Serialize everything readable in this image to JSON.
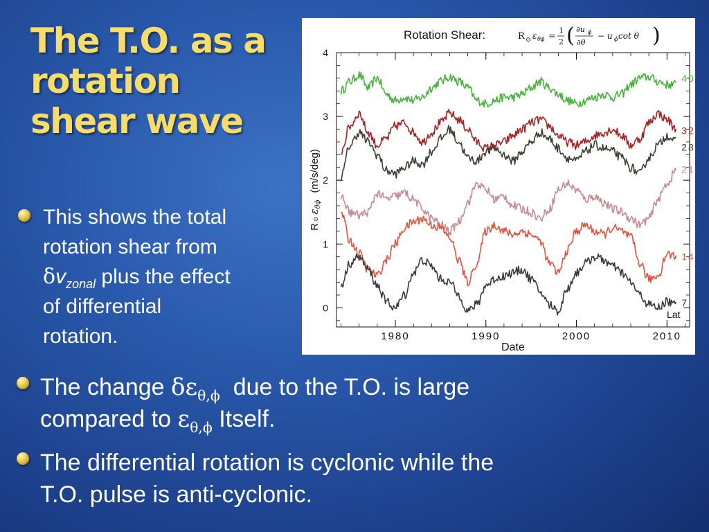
{
  "slide": {
    "title_lines": [
      "The T.O. as a",
      "rotation",
      "shear wave"
    ],
    "bullet1": {
      "lines": [
        "This shows the total",
        "rotation shear from"
      ],
      "delta": "δ",
      "v": "v",
      "zonal_sub": "zonal",
      "line3_rest": " plus the effect",
      "line4": "of differential",
      "line5": "rotation."
    },
    "bullet2": {
      "pre": "The change ",
      "delta_eps": "δε",
      "sub": "θ,ϕ",
      "post": "  due to the T.O. is large",
      "line2_pre": "compared to ",
      "eps": "ε",
      "line2_post": " Itself."
    },
    "bullet3": {
      "lines": [
        "The differential rotation is cyclonic while the",
        "T.O. pulse is anti-cyclonic."
      ]
    },
    "colors": {
      "title": "#f6dd6a",
      "background": "#2a5aad",
      "lat40": "#45b33a",
      "lat32": "#a82020",
      "lat28": "#3d3d32",
      "lat21": "#c8888f",
      "lat14": "#e8503a",
      "lat7": "#3a3a3a"
    }
  },
  "chart_data": {
    "type": "line",
    "title": "Rotation Shear:",
    "formula_lhs": "R",
    "formula_eps": "ε",
    "formula_eps_sub": "θϕ",
    "formula_eq": "=",
    "formula_frac_num": "1",
    "formula_frac_den": "2",
    "formula_num": "∂u",
    "formula_num_sub": "ϕ",
    "formula_den": "∂θ",
    "formula_tail": "− u",
    "formula_tail_sub": "ϕ",
    "formula_tail2": " cot θ",
    "xlabel": "Date",
    "ylabel": "(m/s/deg)",
    "ylabel_prefix": "R",
    "ylabel_eps": "ε",
    "ylabel_eps_sub": "θϕ",
    "x_ticks": [
      1980,
      1990,
      2000,
      2010
    ],
    "y_ticks": [
      0,
      1,
      2,
      3,
      4
    ],
    "xlim": [
      1973.5,
      2012.5
    ],
    "ylim": [
      -0.3,
      4.0
    ],
    "legend_title": "Lat",
    "series": [
      {
        "name": "40",
        "color": "#45b33a",
        "label_year": 2011.6,
        "label_value": 3.6,
        "points": [
          [
            1974,
            3.4
          ],
          [
            1975,
            3.55
          ],
          [
            1976,
            3.65
          ],
          [
            1977,
            3.45
          ],
          [
            1978,
            3.6
          ],
          [
            1979,
            3.35
          ],
          [
            1980,
            3.25
          ],
          [
            1981,
            3.3
          ],
          [
            1982,
            3.25
          ],
          [
            1983,
            3.3
          ],
          [
            1984,
            3.45
          ],
          [
            1985,
            3.55
          ],
          [
            1986,
            3.62
          ],
          [
            1987,
            3.55
          ],
          [
            1988,
            3.45
          ],
          [
            1989,
            3.25
          ],
          [
            1990,
            3.2
          ],
          [
            1991,
            3.25
          ],
          [
            1992,
            3.3
          ],
          [
            1993,
            3.3
          ],
          [
            1994,
            3.35
          ],
          [
            1995,
            3.45
          ],
          [
            1996,
            3.55
          ],
          [
            1997,
            3.45
          ],
          [
            1998,
            3.35
          ],
          [
            1999,
            3.25
          ],
          [
            2000,
            3.2
          ],
          [
            2001,
            3.25
          ],
          [
            2002,
            3.3
          ],
          [
            2003,
            3.35
          ],
          [
            2004,
            3.3
          ],
          [
            2005,
            3.35
          ],
          [
            2006,
            3.5
          ],
          [
            2007,
            3.6
          ],
          [
            2008,
            3.62
          ],
          [
            2009,
            3.55
          ],
          [
            2010,
            3.5
          ],
          [
            2011,
            3.5
          ]
        ]
      },
      {
        "name": "32",
        "color": "#a82020",
        "label_year": 2011.6,
        "label_value": 2.78,
        "points": [
          [
            1974,
            2.45
          ],
          [
            1975,
            2.85
          ],
          [
            1976,
            3.05
          ],
          [
            1977,
            2.75
          ],
          [
            1978,
            2.55
          ],
          [
            1979,
            2.65
          ],
          [
            1980,
            2.85
          ],
          [
            1981,
            2.9
          ],
          [
            1982,
            2.75
          ],
          [
            1983,
            2.6
          ],
          [
            1984,
            2.75
          ],
          [
            1985,
            2.9
          ],
          [
            1986,
            3.05
          ],
          [
            1987,
            2.95
          ],
          [
            1988,
            2.8
          ],
          [
            1989,
            2.6
          ],
          [
            1990,
            2.5
          ],
          [
            1991,
            2.55
          ],
          [
            1992,
            2.6
          ],
          [
            1993,
            2.7
          ],
          [
            1994,
            2.8
          ],
          [
            1995,
            2.9
          ],
          [
            1996,
            2.95
          ],
          [
            1997,
            2.85
          ],
          [
            1998,
            2.7
          ],
          [
            1999,
            2.6
          ],
          [
            2000,
            2.55
          ],
          [
            2001,
            2.6
          ],
          [
            2002,
            2.7
          ],
          [
            2003,
            2.75
          ],
          [
            2004,
            2.8
          ],
          [
            2005,
            2.7
          ],
          [
            2006,
            2.55
          ],
          [
            2007,
            2.65
          ],
          [
            2008,
            2.9
          ],
          [
            2009,
            3.05
          ],
          [
            2010,
            2.95
          ],
          [
            2011,
            2.8
          ]
        ]
      },
      {
        "name": "28",
        "color": "#3d3d32",
        "label_year": 2011.6,
        "label_value": 2.52,
        "points": [
          [
            1974,
            2.05
          ],
          [
            1975,
            2.55
          ],
          [
            1976,
            2.75
          ],
          [
            1977,
            2.6
          ],
          [
            1978,
            2.4
          ],
          [
            1979,
            2.15
          ],
          [
            1980,
            2.1
          ],
          [
            1981,
            2.2
          ],
          [
            1982,
            2.3
          ],
          [
            1983,
            2.25
          ],
          [
            1984,
            2.45
          ],
          [
            1985,
            2.65
          ],
          [
            1986,
            2.8
          ],
          [
            1987,
            2.6
          ],
          [
            1988,
            2.35
          ],
          [
            1989,
            2.3
          ],
          [
            1990,
            2.45
          ],
          [
            1991,
            2.5
          ],
          [
            1992,
            2.4
          ],
          [
            1993,
            2.3
          ],
          [
            1994,
            2.45
          ],
          [
            1995,
            2.6
          ],
          [
            1996,
            2.75
          ],
          [
            1997,
            2.65
          ],
          [
            1998,
            2.5
          ],
          [
            1999,
            2.35
          ],
          [
            2000,
            2.3
          ],
          [
            2001,
            2.45
          ],
          [
            2002,
            2.55
          ],
          [
            2003,
            2.5
          ],
          [
            2004,
            2.45
          ],
          [
            2005,
            2.35
          ],
          [
            2006,
            2.2
          ],
          [
            2007,
            2.1
          ],
          [
            2008,
            2.35
          ],
          [
            2009,
            2.55
          ],
          [
            2010,
            2.7
          ],
          [
            2011,
            2.6
          ]
        ]
      },
      {
        "name": "21",
        "color": "#c8888f",
        "label_year": 2011.6,
        "label_value": 2.17,
        "points": [
          [
            1974,
            1.75
          ],
          [
            1975,
            1.5
          ],
          [
            1976,
            1.45
          ],
          [
            1977,
            1.5
          ],
          [
            1978,
            1.8
          ],
          [
            1979,
            1.7
          ],
          [
            1980,
            1.75
          ],
          [
            1981,
            1.8
          ],
          [
            1982,
            1.7
          ],
          [
            1983,
            1.55
          ],
          [
            1984,
            1.4
          ],
          [
            1985,
            1.3
          ],
          [
            1986,
            1.2
          ],
          [
            1987,
            1.35
          ],
          [
            1988,
            1.65
          ],
          [
            1989,
            1.95
          ],
          [
            1990,
            1.85
          ],
          [
            1991,
            1.7
          ],
          [
            1992,
            1.75
          ],
          [
            1993,
            1.6
          ],
          [
            1994,
            1.55
          ],
          [
            1995,
            1.5
          ],
          [
            1996,
            1.4
          ],
          [
            1997,
            1.55
          ],
          [
            1998,
            1.85
          ],
          [
            1999,
            1.95
          ],
          [
            2000,
            1.85
          ],
          [
            2001,
            1.7
          ],
          [
            2002,
            1.75
          ],
          [
            2003,
            1.65
          ],
          [
            2004,
            1.55
          ],
          [
            2005,
            1.5
          ],
          [
            2006,
            1.4
          ],
          [
            2007,
            1.3
          ],
          [
            2008,
            1.4
          ],
          [
            2009,
            1.7
          ],
          [
            2010,
            1.95
          ],
          [
            2011,
            2.15
          ]
        ]
      },
      {
        "name": "14",
        "color": "#e8503a",
        "label_year": 2011.6,
        "label_value": 0.8,
        "points": [
          [
            1974,
            1.5
          ],
          [
            1975,
            1.05
          ],
          [
            1976,
            0.85
          ],
          [
            1977,
            0.6
          ],
          [
            1978,
            0.5
          ],
          [
            1979,
            0.75
          ],
          [
            1980,
            1.0
          ],
          [
            1981,
            1.25
          ],
          [
            1982,
            1.35
          ],
          [
            1983,
            1.4
          ],
          [
            1984,
            1.3
          ],
          [
            1985,
            1.25
          ],
          [
            1986,
            1.1
          ],
          [
            1987,
            0.75
          ],
          [
            1988,
            0.4
          ],
          [
            1989,
            0.7
          ],
          [
            1990,
            1.2
          ],
          [
            1991,
            1.3
          ],
          [
            1992,
            1.2
          ],
          [
            1993,
            1.15
          ],
          [
            1994,
            1.2
          ],
          [
            1995,
            1.15
          ],
          [
            1996,
            1.05
          ],
          [
            1997,
            0.7
          ],
          [
            1998,
            0.55
          ],
          [
            1999,
            0.9
          ],
          [
            2000,
            1.2
          ],
          [
            2001,
            1.3
          ],
          [
            2002,
            1.2
          ],
          [
            2003,
            1.15
          ],
          [
            2004,
            1.25
          ],
          [
            2005,
            1.2
          ],
          [
            2006,
            1.1
          ],
          [
            2007,
            0.7
          ],
          [
            2008,
            0.45
          ],
          [
            2009,
            0.5
          ],
          [
            2010,
            0.85
          ],
          [
            2011,
            0.8
          ]
        ]
      },
      {
        "name": "7",
        "color": "#3a3a3a",
        "label_year": 2011.6,
        "label_value": 0.08,
        "points": [
          [
            1974,
            0.35
          ],
          [
            1975,
            0.7
          ],
          [
            1976,
            0.8
          ],
          [
            1977,
            0.6
          ],
          [
            1978,
            0.35
          ],
          [
            1979,
            0.1
          ],
          [
            1980,
            0.0
          ],
          [
            1981,
            0.2
          ],
          [
            1982,
            0.55
          ],
          [
            1983,
            0.75
          ],
          [
            1984,
            0.65
          ],
          [
            1985,
            0.45
          ],
          [
            1986,
            0.4
          ],
          [
            1987,
            0.2
          ],
          [
            1988,
            -0.05
          ],
          [
            1989,
            0.05
          ],
          [
            1990,
            0.35
          ],
          [
            1991,
            0.45
          ],
          [
            1992,
            0.5
          ],
          [
            1993,
            0.55
          ],
          [
            1994,
            0.6
          ],
          [
            1995,
            0.45
          ],
          [
            1996,
            0.25
          ],
          [
            1997,
            0.05
          ],
          [
            1998,
            -0.05
          ],
          [
            1999,
            0.3
          ],
          [
            2000,
            0.55
          ],
          [
            2001,
            0.7
          ],
          [
            2002,
            0.8
          ],
          [
            2003,
            0.75
          ],
          [
            2004,
            0.65
          ],
          [
            2005,
            0.55
          ],
          [
            2006,
            0.4
          ],
          [
            2007,
            0.2
          ],
          [
            2008,
            0.05
          ],
          [
            2009,
            0.0
          ],
          [
            2010,
            0.1
          ],
          [
            2011,
            0.05
          ]
        ]
      }
    ]
  }
}
